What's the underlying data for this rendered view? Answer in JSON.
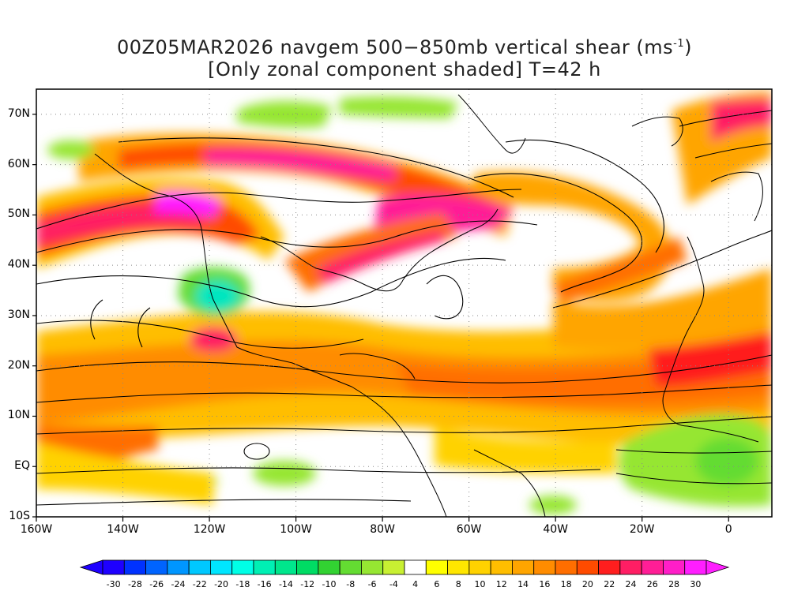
{
  "title_line1": "00Z05MAR2026 navgem 500−850mb vertical shear (ms",
  "title_line1_sup": "-1",
  "title_line1_end": ")",
  "title_line2": "[Only zonal component shaded] T=42 h",
  "lat_labels": [
    "70N",
    "60N",
    "50N",
    "40N",
    "30N",
    "20N",
    "10N",
    "EQ",
    "10S"
  ],
  "lat_values": [
    70,
    60,
    50,
    40,
    30,
    20,
    10,
    0,
    -10
  ],
  "lon_labels": [
    "160W",
    "140W",
    "120W",
    "100W",
    "80W",
    "60W",
    "40W",
    "20W",
    "0"
  ],
  "lon_values": [
    -160,
    -140,
    -120,
    -100,
    -80,
    -60,
    -40,
    -20,
    0
  ],
  "extent": {
    "lon_min": -160,
    "lon_max": 10,
    "lat_min": -10,
    "lat_max": 75
  },
  "colorbar": {
    "labels": [
      "-30",
      "-28",
      "-26",
      "-24",
      "-22",
      "-20",
      "-18",
      "-16",
      "-14",
      "-12",
      "-10",
      "-8",
      "-6",
      "-4",
      "4",
      "6",
      "8",
      "10",
      "12",
      "14",
      "16",
      "18",
      "20",
      "22",
      "24",
      "26",
      "28",
      "30"
    ],
    "colors": [
      "#1e00ff",
      "#0032ff",
      "#0064ff",
      "#0096ff",
      "#00c8ff",
      "#00e6ff",
      "#00ffe6",
      "#00f0b4",
      "#00e68c",
      "#00dc64",
      "#32d232",
      "#64dc32",
      "#96e632",
      "#c8f032",
      "#ffffff",
      "#ffff00",
      "#ffe600",
      "#ffd200",
      "#ffbe00",
      "#ffa500",
      "#ff8c00",
      "#ff6e00",
      "#ff4b00",
      "#ff1e1e",
      "#ff1e64",
      "#ff1e96",
      "#ff1ec8",
      "#ff1eff"
    ]
  }
}
